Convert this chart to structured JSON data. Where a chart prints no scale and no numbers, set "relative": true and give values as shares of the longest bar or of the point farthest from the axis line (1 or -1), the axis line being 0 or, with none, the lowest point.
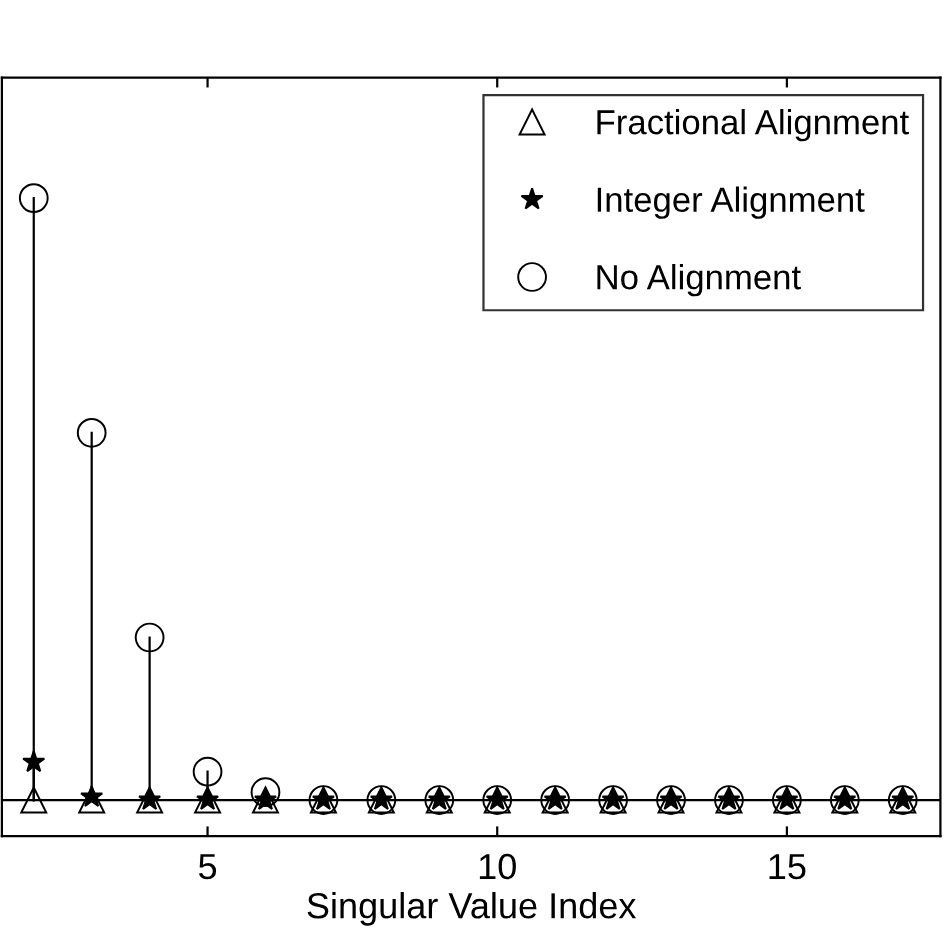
{
  "chart_data": {
    "type": "lollipop",
    "xlabel": "Singular Value Index",
    "relative": true,
    "x": [
      2,
      3,
      4,
      5,
      6,
      7,
      8,
      9,
      10,
      11,
      12,
      13,
      14,
      15,
      16,
      17
    ],
    "xlim": [
      1.45,
      17.65
    ],
    "xticks": [
      5,
      10,
      15
    ],
    "legend": "top right",
    "grid": false,
    "series": [
      {
        "name": "Fractional Alignment",
        "color": "#000000",
        "marker": "triangle",
        "values": [
          0,
          0,
          0,
          0,
          0,
          0,
          0,
          0,
          0,
          0,
          0,
          0,
          0,
          0,
          0,
          0
        ]
      },
      {
        "name": "Integer Alignment",
        "color": "#000000",
        "marker": "star",
        "values": [
          0.063,
          0.005,
          0,
          0,
          0,
          0,
          0,
          0,
          0,
          0,
          0,
          0,
          0,
          0,
          0,
          0
        ]
      },
      {
        "name": "No Alignment",
        "color": "#000000",
        "marker": "circle",
        "values": [
          1,
          0.61,
          0.27,
          0.047,
          0.013,
          0,
          0,
          0,
          0,
          0,
          0,
          0,
          0,
          0,
          0,
          0
        ]
      }
    ]
  }
}
